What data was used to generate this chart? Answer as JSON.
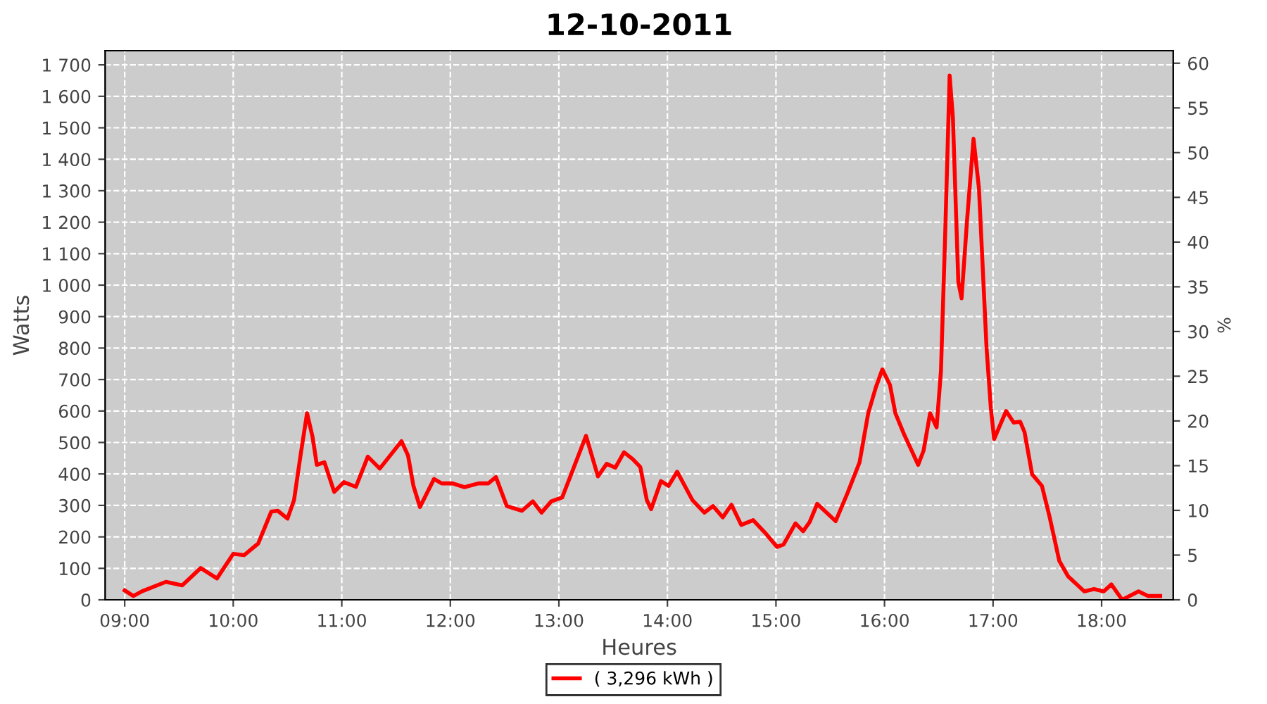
{
  "chart_data": {
    "type": "line",
    "title": "12-10-2011",
    "xlabel": "Heures",
    "ylabel": "Watts",
    "y2label": "%",
    "xlim": [
      8.82,
      18.66
    ],
    "xticks": [
      {
        "value": 9,
        "label": "09:00"
      },
      {
        "value": 10,
        "label": "10:00"
      },
      {
        "value": 11,
        "label": "11:00"
      },
      {
        "value": 12,
        "label": "12:00"
      },
      {
        "value": 13,
        "label": "13:00"
      },
      {
        "value": 14,
        "label": "14:00"
      },
      {
        "value": 15,
        "label": "15:00"
      },
      {
        "value": 16,
        "label": "16:00"
      },
      {
        "value": 17,
        "label": "17:00"
      },
      {
        "value": 18,
        "label": "18:00"
      }
    ],
    "ylim": [
      0,
      1745
    ],
    "yticks": [
      0,
      100,
      200,
      300,
      400,
      500,
      600,
      700,
      800,
      900,
      {
        "value": 1000,
        "label": "1 000"
      },
      {
        "value": 1100,
        "label": "1 100"
      },
      {
        "value": 1200,
        "label": "1 200"
      },
      {
        "value": 1300,
        "label": "1 300"
      },
      {
        "value": 1400,
        "label": "1 400"
      },
      {
        "value": 1500,
        "label": "1 500"
      },
      {
        "value": 1600,
        "label": "1 600"
      },
      {
        "value": 1700,
        "label": "1 700"
      }
    ],
    "y2lim": [
      0,
      61.4
    ],
    "y2ticks": [
      0,
      5,
      10,
      15,
      20,
      25,
      30,
      35,
      40,
      45,
      50,
      55,
      60
    ],
    "grid": true,
    "legend": "bottom",
    "marker": "none",
    "line_style": "solid",
    "series": [
      {
        "name": "( 3,296 kWh )",
        "color": "#ff0000",
        "x": [
          9.0,
          9.08,
          9.16,
          9.38,
          9.53,
          9.7,
          9.85,
          10.0,
          10.1,
          10.23,
          10.35,
          10.41,
          10.5,
          10.56,
          10.62,
          10.68,
          10.73,
          10.77,
          10.84,
          10.93,
          11.02,
          11.13,
          11.24,
          11.35,
          11.55,
          11.61,
          11.66,
          11.72,
          11.85,
          11.92,
          12.02,
          12.13,
          12.26,
          12.35,
          12.42,
          12.52,
          12.66,
          12.76,
          12.84,
          12.93,
          13.03,
          13.13,
          13.25,
          13.36,
          13.44,
          13.52,
          13.6,
          13.68,
          13.75,
          13.81,
          13.85,
          13.94,
          14.01,
          14.09,
          14.23,
          14.34,
          14.42,
          14.51,
          14.59,
          14.68,
          14.79,
          14.9,
          15.01,
          15.07,
          15.18,
          15.25,
          15.31,
          15.38,
          15.55,
          15.66,
          15.77,
          15.85,
          15.92,
          15.98,
          16.05,
          16.1,
          16.18,
          16.25,
          16.31,
          16.36,
          16.42,
          16.48,
          16.52,
          16.56,
          16.6,
          16.63,
          16.68,
          16.71,
          16.76,
          16.82,
          16.87,
          16.94,
          16.98,
          17.01,
          17.12,
          17.19,
          17.25,
          17.29,
          17.36,
          17.45,
          17.52,
          17.61,
          17.69,
          17.84,
          17.93,
          18.02,
          18.09,
          18.19,
          18.34,
          18.43,
          18.54
        ],
        "values": [
          30,
          12,
          27,
          57,
          46,
          101,
          68,
          146,
          142,
          179,
          280,
          283,
          258,
          317,
          459,
          593,
          519,
          429,
          437,
          343,
          374,
          359,
          455,
          417,
          504,
          459,
          362,
          295,
          384,
          370,
          370,
          358,
          370,
          370,
          390,
          298,
          283,
          313,
          277,
          313,
          325,
          414,
          521,
          392,
          432,
          420,
          469,
          447,
          422,
          317,
          288,
          377,
          362,
          407,
          317,
          277,
          298,
          262,
          302,
          238,
          253,
          213,
          168,
          176,
          243,
          218,
          247,
          305,
          250,
          340,
          437,
          593,
          675,
          732,
          683,
          593,
          526,
          474,
          429,
          474,
          593,
          548,
          727,
          1174,
          1666,
          1532,
          1010,
          958,
          1204,
          1465,
          1308,
          801,
          608,
          511,
          600,
          563,
          566,
          533,
          399,
          362,
          265,
          124,
          75,
          27,
          34,
          27,
          49,
          0,
          27,
          12,
          12
        ]
      }
    ]
  }
}
